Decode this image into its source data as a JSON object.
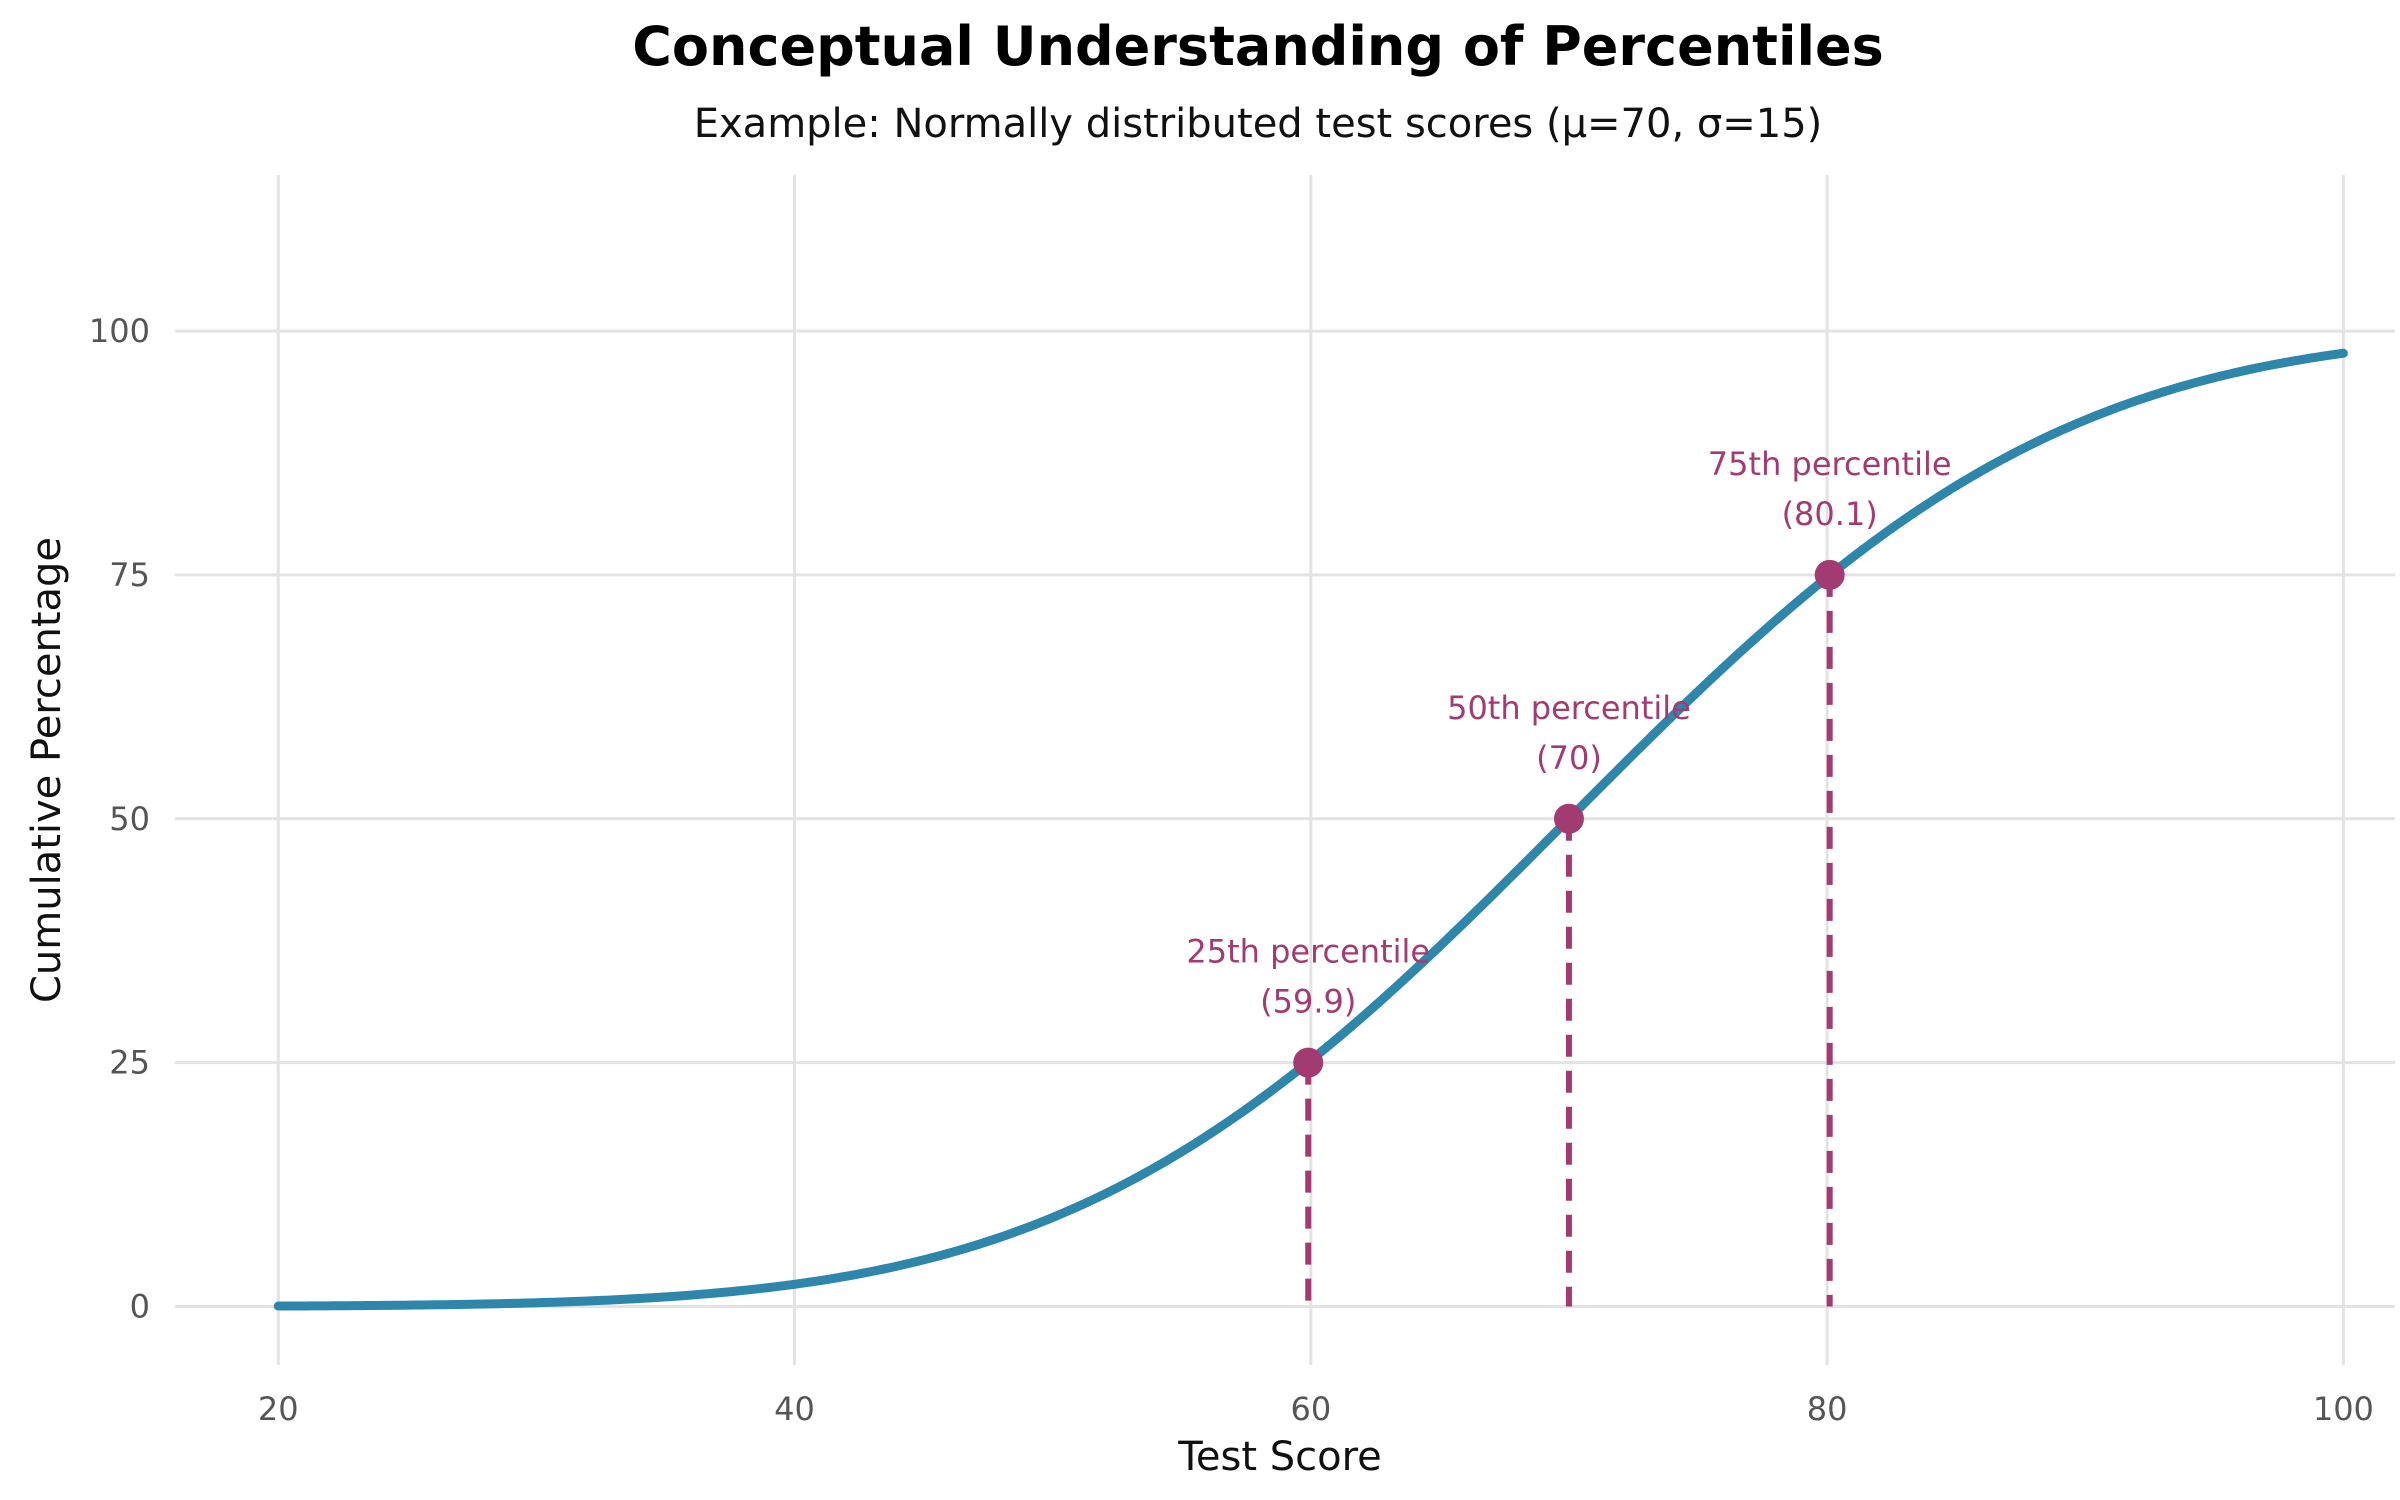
{
  "chart_data": {
    "type": "line",
    "title": "Conceptual Understanding of Percentiles",
    "subtitle": "Example: Normally distributed test scores (μ=70, σ=15)",
    "xlabel": "Test Score",
    "ylabel": "Cumulative Percentage",
    "xlim": [
      16,
      102
    ],
    "ylim": [
      -6,
      116
    ],
    "x_ticks": [
      20,
      40,
      60,
      80,
      100
    ],
    "y_ticks": [
      0,
      25,
      50,
      75,
      100
    ],
    "grid": true,
    "distribution": {
      "mean": 70,
      "sd": 15
    },
    "series": [
      {
        "x": [
          20,
          25,
          30,
          35,
          40,
          45,
          50,
          55,
          60,
          65,
          70,
          75,
          80,
          85,
          90,
          95,
          100
        ],
        "y": [
          0.04,
          0.13,
          0.38,
          0.99,
          2.28,
          4.78,
          9.12,
          15.87,
          25.25,
          36.94,
          50.0,
          63.06,
          74.75,
          84.13,
          90.88,
          95.22,
          97.72
        ]
      }
    ],
    "markers": [
      {
        "x": 59.9,
        "y": 25,
        "label": "25th percentile",
        "value_label": "(59.9)"
      },
      {
        "x": 70,
        "y": 50,
        "label": "50th percentile",
        "value_label": "(70)"
      },
      {
        "x": 80.1,
        "y": 75,
        "label": "75th percentile",
        "value_label": "(80.1)"
      }
    ],
    "colors": {
      "line": "#2e86ab",
      "marker": "#a23b72",
      "grid": "#e3e3e3"
    }
  }
}
